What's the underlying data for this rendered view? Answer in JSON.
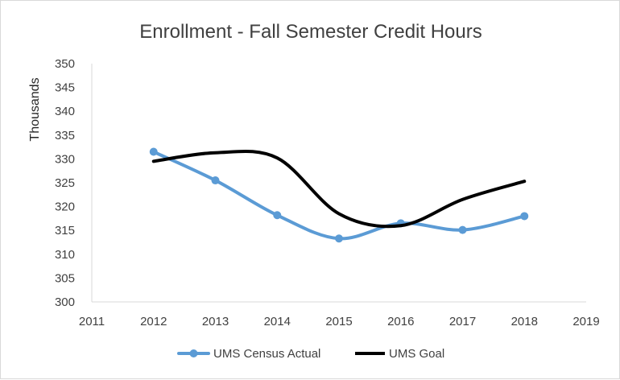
{
  "chart_data": {
    "type": "line",
    "title": "Enrollment - Fall Semester Credit Hours",
    "xlabel": "",
    "ylabel": "Thousands",
    "xlim": [
      2011,
      2019
    ],
    "ylim": [
      300,
      350
    ],
    "x_ticks": [
      "2011",
      "2012",
      "2013",
      "2014",
      "2015",
      "2016",
      "2017",
      "2018",
      "2019"
    ],
    "y_ticks": [
      "300",
      "305",
      "310",
      "315",
      "320",
      "325",
      "330",
      "335",
      "340",
      "345",
      "350"
    ],
    "x": [
      2012,
      2013,
      2014,
      2015,
      2016,
      2017,
      2018
    ],
    "series": [
      {
        "name": "UMS Census Actual",
        "color": "#5b9bd5",
        "values": [
          331.5,
          325.5,
          318.2,
          313.3,
          316.5,
          315.1,
          318.0
        ],
        "markers": true
      },
      {
        "name": "UMS Goal",
        "color": "#000000",
        "values": [
          329.5,
          331.3,
          330.2,
          318.5,
          316.0,
          321.5,
          325.3
        ],
        "markers": false
      }
    ],
    "grid": false,
    "legend": "bottom"
  }
}
